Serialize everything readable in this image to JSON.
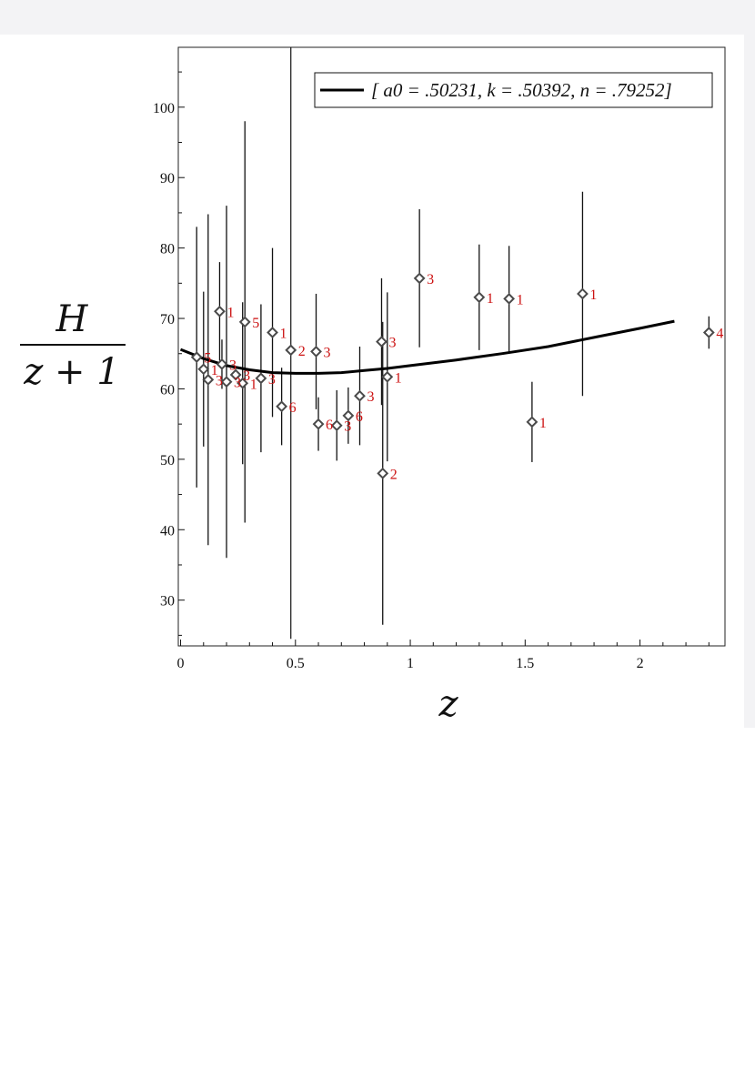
{
  "chart_data": {
    "type": "scatter",
    "title": "",
    "xlabel": "z",
    "ylabel": {
      "numerator": "H",
      "denominator": "z + 1"
    },
    "xlim": [
      -0.01,
      2.37
    ],
    "ylim": [
      23.5,
      108.5
    ],
    "xticks": [
      {
        "v": 0,
        "label": "0"
      },
      {
        "v": 0.5,
        "label": "0.5"
      },
      {
        "v": 1,
        "label": "1"
      },
      {
        "v": 1.5,
        "label": "1.5"
      },
      {
        "v": 2,
        "label": "2"
      }
    ],
    "yticks": [
      {
        "v": 30,
        "label": "30"
      },
      {
        "v": 40,
        "label": "40"
      },
      {
        "v": 50,
        "label": "50"
      },
      {
        "v": 60,
        "label": "60"
      },
      {
        "v": 70,
        "label": "70"
      },
      {
        "v": 80,
        "label": "80"
      },
      {
        "v": 90,
        "label": "90"
      },
      {
        "v": 100,
        "label": "100"
      }
    ],
    "legend": {
      "placement": "top-right",
      "label": "[ a0 = .50231,  k = .50392,  n = .79252]"
    },
    "fit_curve": {
      "name": "[ a0 = .50231,  k = .50392,  n = .79252]",
      "x": [
        0,
        0.1,
        0.2,
        0.3,
        0.4,
        0.5,
        0.6,
        0.7,
        0.8,
        0.9,
        1.0,
        1.2,
        1.4,
        1.6,
        1.8,
        2.0,
        2.15
      ],
      "y": [
        65.6,
        64.3,
        63.3,
        62.7,
        62.3,
        62.2,
        62.2,
        62.3,
        62.6,
        62.9,
        63.3,
        64.1,
        65.0,
        66.0,
        67.3,
        68.6,
        69.6
      ]
    },
    "vertical_line": {
      "x": 0.48,
      "ymin": 24.5,
      "ymax": 108.5
    },
    "points": [
      {
        "x": 0.07,
        "y": 64.5,
        "err": 18.5,
        "label": "5"
      },
      {
        "x": 0.1,
        "y": 62.8,
        "err": 11.0,
        "label": "1"
      },
      {
        "x": 0.12,
        "y": 61.3,
        "err": 23.5,
        "label": "3"
      },
      {
        "x": 0.17,
        "y": 71.0,
        "err": 7.0,
        "label": "1"
      },
      {
        "x": 0.18,
        "y": 63.5,
        "err": 3.5,
        "label": "3"
      },
      {
        "x": 0.2,
        "y": 61.0,
        "err": 25.0,
        "label": "3"
      },
      {
        "x": 0.24,
        "y": 62.0,
        "err": 0,
        "label": "3"
      },
      {
        "x": 0.27,
        "y": 60.8,
        "err": 11.5,
        "label": "1"
      },
      {
        "x": 0.28,
        "y": 69.5,
        "err": 28.5,
        "label": "5"
      },
      {
        "x": 0.35,
        "y": 61.5,
        "err": 10.5,
        "label": "3"
      },
      {
        "x": 0.4,
        "y": 68.0,
        "err": 12.0,
        "label": "1"
      },
      {
        "x": 0.44,
        "y": 57.5,
        "err": 5.5,
        "label": "6"
      },
      {
        "x": 0.48,
        "y": 65.5,
        "err": 0,
        "label": "2"
      },
      {
        "x": 0.59,
        "y": 65.3,
        "err": 8.2,
        "label": "3"
      },
      {
        "x": 0.6,
        "y": 55.0,
        "err": 3.8,
        "label": "6"
      },
      {
        "x": 0.68,
        "y": 54.8,
        "err": 5.0,
        "label": "3"
      },
      {
        "x": 0.73,
        "y": 56.2,
        "err": 4.0,
        "label": "6"
      },
      {
        "x": 0.78,
        "y": 59.0,
        "err": 7.0,
        "label": "3"
      },
      {
        "x": 0.875,
        "y": 66.7,
        "err": 9.0,
        "label": "3"
      },
      {
        "x": 0.88,
        "y": 48.0,
        "err": 21.5,
        "label": "2"
      },
      {
        "x": 0.9,
        "y": 61.7,
        "err": 12.0,
        "label": "1"
      },
      {
        "x": 1.04,
        "y": 75.7,
        "err": 9.8,
        "label": "3"
      },
      {
        "x": 1.3,
        "y": 73.0,
        "err": 7.5,
        "label": "1"
      },
      {
        "x": 1.43,
        "y": 72.8,
        "err": 7.5,
        "label": "1"
      },
      {
        "x": 1.53,
        "y": 55.3,
        "err": 5.7,
        "label": "1"
      },
      {
        "x": 1.75,
        "y": 73.5,
        "err": 14.5,
        "label": "1"
      },
      {
        "x": 2.3,
        "y": 68.0,
        "err": 2.3,
        "label": "4"
      }
    ],
    "colors": {
      "marker": "#4a4a4a",
      "label": "#cc1111",
      "line": "#000000"
    }
  }
}
